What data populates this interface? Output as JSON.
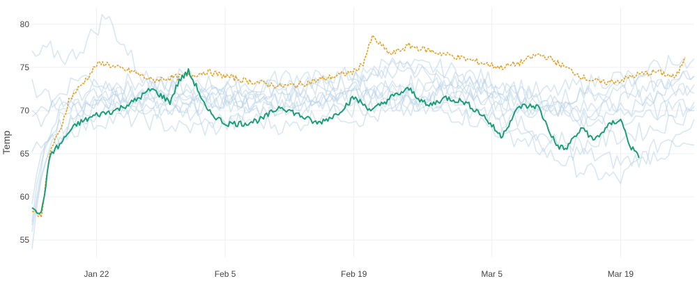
{
  "chart_data": {
    "type": "line",
    "ylabel": "Temp",
    "xlabel": "",
    "ylim": [
      53,
      82
    ],
    "xlim": [
      "2024-01-15",
      "2024-03-27"
    ],
    "y_ticks": [
      55,
      60,
      65,
      70,
      75,
      80
    ],
    "x_ticks": [
      {
        "date": "2024-01-22",
        "label": "Jan 22"
      },
      {
        "date": "2024-02-05",
        "label": "Feb 5"
      },
      {
        "date": "2024-02-19",
        "label": "Feb 19"
      },
      {
        "date": "2024-03-05",
        "label": "Mar 5"
      },
      {
        "date": "2024-03-19",
        "label": "Mar 19"
      }
    ],
    "grid": true,
    "legend": "none",
    "colors": {
      "background_series": "#b9d3e8",
      "green_series": "#1b9e77",
      "orange_series": "#e6a022"
    },
    "background_series": [
      {
        "x": [
          "2024-01-15",
          "2024-01-16",
          "2024-01-18",
          "2024-01-20",
          "2024-01-23",
          "2024-01-27",
          "2024-01-31",
          "2024-02-04",
          "2024-02-08",
          "2024-02-12",
          "2024-02-16",
          "2024-02-20",
          "2024-02-24",
          "2024-02-28",
          "2024-03-03",
          "2024-03-07",
          "2024-03-11",
          "2024-03-15",
          "2024-03-19",
          "2024-03-23",
          "2024-03-27"
        ],
        "y": [
          54,
          63,
          69,
          71,
          71.5,
          72,
          71,
          72,
          71,
          72.5,
          72,
          73,
          72,
          73,
          72,
          71,
          70,
          69,
          70,
          71,
          72
        ]
      },
      {
        "x": [
          "2024-01-15",
          "2024-01-16",
          "2024-01-18",
          "2024-01-20",
          "2024-01-23",
          "2024-01-27",
          "2024-01-31",
          "2024-02-04",
          "2024-02-08",
          "2024-02-12",
          "2024-02-16",
          "2024-02-20",
          "2024-02-24",
          "2024-02-28",
          "2024-03-03",
          "2024-03-07",
          "2024-03-11",
          "2024-03-15",
          "2024-03-19",
          "2024-03-23",
          "2024-03-27"
        ],
        "y": [
          56,
          64,
          70,
          72,
          73,
          73.5,
          72,
          73,
          72.5,
          73,
          74,
          74,
          75,
          74,
          73,
          72,
          71,
          70,
          71,
          72,
          73
        ]
      },
      {
        "x": [
          "2024-01-15",
          "2024-01-16",
          "2024-01-18",
          "2024-01-20",
          "2024-01-23",
          "2024-01-27",
          "2024-01-31",
          "2024-02-04",
          "2024-02-08",
          "2024-02-12",
          "2024-02-16",
          "2024-02-20",
          "2024-02-24",
          "2024-02-28",
          "2024-03-03",
          "2024-03-07",
          "2024-03-11",
          "2024-03-15",
          "2024-03-19",
          "2024-03-23",
          "2024-03-27"
        ],
        "y": [
          60,
          66,
          68,
          69,
          70,
          70.5,
          70,
          69,
          70,
          70,
          71,
          70,
          71,
          71,
          70,
          68,
          65,
          63,
          62,
          66,
          69
        ]
      },
      {
        "x": [
          "2024-01-15",
          "2024-01-16",
          "2024-01-18",
          "2024-01-20",
          "2024-01-23",
          "2024-01-27",
          "2024-01-31",
          "2024-02-04",
          "2024-02-08",
          "2024-02-12",
          "2024-02-16",
          "2024-02-20",
          "2024-02-24",
          "2024-02-28",
          "2024-03-03",
          "2024-03-07",
          "2024-03-11",
          "2024-03-15",
          "2024-03-19",
          "2024-03-23",
          "2024-03-27"
        ],
        "y": [
          70,
          70.5,
          71,
          71,
          72,
          71,
          70,
          71,
          71,
          72,
          71,
          71.5,
          72,
          71,
          72,
          70,
          70,
          70.5,
          70,
          70,
          70.5
        ]
      },
      {
        "x": [
          "2024-01-15",
          "2024-01-16",
          "2024-01-18",
          "2024-01-20",
          "2024-01-23",
          "2024-01-27",
          "2024-01-31",
          "2024-02-04",
          "2024-02-08",
          "2024-02-12",
          "2024-02-16",
          "2024-02-20",
          "2024-02-24",
          "2024-02-28",
          "2024-03-03",
          "2024-03-07",
          "2024-03-11",
          "2024-03-15",
          "2024-03-19",
          "2024-03-23",
          "2024-03-27"
        ],
        "y": [
          69,
          69,
          72,
          74,
          73,
          72,
          74,
          73,
          73,
          74,
          73,
          74,
          75,
          75,
          74,
          73,
          72,
          73,
          74,
          73,
          74
        ]
      },
      {
        "x": [
          "2024-01-15",
          "2024-01-16",
          "2024-01-18",
          "2024-01-20",
          "2024-01-23",
          "2024-01-27",
          "2024-01-31",
          "2024-02-04",
          "2024-02-08",
          "2024-02-12",
          "2024-02-16",
          "2024-02-20",
          "2024-02-24",
          "2024-02-28",
          "2024-03-03",
          "2024-03-07",
          "2024-03-11",
          "2024-03-15",
          "2024-03-19",
          "2024-03-23",
          "2024-03-27"
        ],
        "y": [
          58,
          65,
          67,
          68,
          69,
          69,
          68,
          68,
          69,
          68,
          70,
          69,
          70,
          70,
          69,
          67,
          66,
          65,
          64,
          65,
          66
        ]
      },
      {
        "x": [
          "2024-01-15",
          "2024-01-17",
          "2024-01-19",
          "2024-01-21",
          "2024-01-23",
          "2024-01-27",
          "2024-01-31",
          "2024-02-04",
          "2024-02-08",
          "2024-02-12",
          "2024-02-16",
          "2024-02-20",
          "2024-02-24",
          "2024-02-28",
          "2024-03-03",
          "2024-03-07",
          "2024-03-11",
          "2024-03-15",
          "2024-03-19",
          "2024-03-23",
          "2024-03-27"
        ],
        "y": [
          76,
          77,
          76,
          78,
          81,
          74,
          72,
          71,
          73,
          72,
          73,
          74,
          76,
          74,
          72,
          71,
          70,
          72,
          73,
          75,
          76
        ]
      },
      {
        "x": [
          "2024-01-15",
          "2024-01-16",
          "2024-01-18",
          "2024-01-20",
          "2024-01-23",
          "2024-01-27",
          "2024-01-31",
          "2024-02-04",
          "2024-02-08",
          "2024-02-12",
          "2024-02-16",
          "2024-02-20",
          "2024-02-24",
          "2024-02-28",
          "2024-03-03",
          "2024-03-07",
          "2024-03-11",
          "2024-03-15",
          "2024-03-19",
          "2024-03-23",
          "2024-03-27"
        ],
        "y": [
          66,
          66,
          67,
          69,
          72,
          71,
          72,
          71,
          70,
          71,
          72,
          72,
          73,
          73,
          73,
          72,
          71,
          69,
          68,
          70,
          71
        ]
      },
      {
        "x": [
          "2024-01-15",
          "2024-01-16",
          "2024-01-18",
          "2024-01-20",
          "2024-01-23",
          "2024-01-27",
          "2024-01-31",
          "2024-02-04",
          "2024-02-08",
          "2024-02-12",
          "2024-02-16",
          "2024-02-20",
          "2024-02-24",
          "2024-02-28",
          "2024-03-03",
          "2024-03-07",
          "2024-03-11",
          "2024-03-15",
          "2024-03-19",
          "2024-03-23",
          "2024-03-27"
        ],
        "y": [
          73,
          72,
          71,
          70,
          71,
          72,
          73,
          72,
          71,
          70,
          71,
          72,
          71,
          72,
          73,
          72,
          71,
          72,
          72,
          73,
          74
        ]
      },
      {
        "x": [
          "2024-01-15",
          "2024-01-16",
          "2024-01-18",
          "2024-01-20",
          "2024-01-23",
          "2024-01-27",
          "2024-01-31",
          "2024-02-04",
          "2024-02-08",
          "2024-02-12",
          "2024-02-16",
          "2024-02-20",
          "2024-02-24",
          "2024-02-28",
          "2024-03-03",
          "2024-03-07",
          "2024-03-11",
          "2024-03-15",
          "2024-03-19",
          "2024-03-23",
          "2024-03-27"
        ],
        "y": [
          55,
          62,
          67,
          70,
          71,
          70,
          70,
          71,
          72,
          71,
          71,
          72,
          71,
          72,
          71,
          69,
          67,
          66,
          67,
          68,
          70
        ]
      }
    ],
    "series": [
      {
        "color": "#e6a022",
        "dash": "dotted",
        "x": [
          "2024-01-15",
          "2024-01-16",
          "2024-01-17",
          "2024-01-18",
          "2024-01-19",
          "2024-01-20",
          "2024-01-21",
          "2024-01-22",
          "2024-01-23",
          "2024-01-24",
          "2024-01-26",
          "2024-01-28",
          "2024-01-30",
          "2024-02-01",
          "2024-02-03",
          "2024-02-05",
          "2024-02-07",
          "2024-02-09",
          "2024-02-11",
          "2024-02-13",
          "2024-02-15",
          "2024-02-17",
          "2024-02-19",
          "2024-02-20",
          "2024-02-21",
          "2024-02-23",
          "2024-02-25",
          "2024-02-27",
          "2024-02-29",
          "2024-03-02",
          "2024-03-04",
          "2024-03-06",
          "2024-03-08",
          "2024-03-10",
          "2024-03-11",
          "2024-03-13",
          "2024-03-15",
          "2024-03-17",
          "2024-03-19",
          "2024-03-21",
          "2024-03-23",
          "2024-03-25",
          "2024-03-26"
        ],
        "y": [
          58.5,
          57.8,
          65.5,
          67.5,
          71.2,
          72.5,
          73.8,
          75.3,
          75.5,
          75.0,
          74.5,
          73.5,
          73.8,
          74.0,
          74.5,
          74.0,
          73.5,
          73.2,
          72.8,
          73.0,
          73.5,
          74.0,
          74.5,
          75.5,
          78.5,
          76.5,
          77.5,
          77.0,
          76.5,
          76.0,
          75.5,
          75.0,
          75.5,
          76.5,
          76.2,
          75.0,
          73.8,
          73.2,
          73.5,
          74.2,
          74.5,
          73.8,
          76.2
        ]
      },
      {
        "color": "#1b9e77",
        "dash": "solid",
        "x": [
          "2024-01-15",
          "2024-01-16",
          "2024-01-17",
          "2024-01-18",
          "2024-01-19",
          "2024-01-20",
          "2024-01-22",
          "2024-01-24",
          "2024-01-26",
          "2024-01-28",
          "2024-01-30",
          "2024-01-31",
          "2024-02-01",
          "2024-02-02",
          "2024-02-03",
          "2024-02-05",
          "2024-02-07",
          "2024-02-09",
          "2024-02-11",
          "2024-02-13",
          "2024-02-15",
          "2024-02-17",
          "2024-02-19",
          "2024-02-21",
          "2024-02-23",
          "2024-02-25",
          "2024-02-27",
          "2024-02-29",
          "2024-03-02",
          "2024-03-04",
          "2024-03-06",
          "2024-03-08",
          "2024-03-10",
          "2024-03-12",
          "2024-03-13",
          "2024-03-14",
          "2024-03-15",
          "2024-03-16",
          "2024-03-18",
          "2024-03-19",
          "2024-03-20",
          "2024-03-21"
        ],
        "y": [
          59.0,
          58.0,
          65.0,
          66.0,
          67.5,
          68.5,
          69.5,
          70.0,
          71.0,
          72.5,
          71.0,
          73.5,
          74.5,
          72.5,
          70.0,
          68.5,
          68.5,
          69.0,
          70.5,
          69.5,
          68.5,
          69.5,
          71.5,
          70.0,
          71.5,
          72.5,
          70.5,
          71.5,
          71.0,
          69.5,
          67.0,
          70.5,
          70.5,
          66.0,
          65.5,
          67.0,
          68.0,
          66.5,
          68.5,
          69.0,
          66.0,
          64.5
        ]
      }
    ]
  }
}
